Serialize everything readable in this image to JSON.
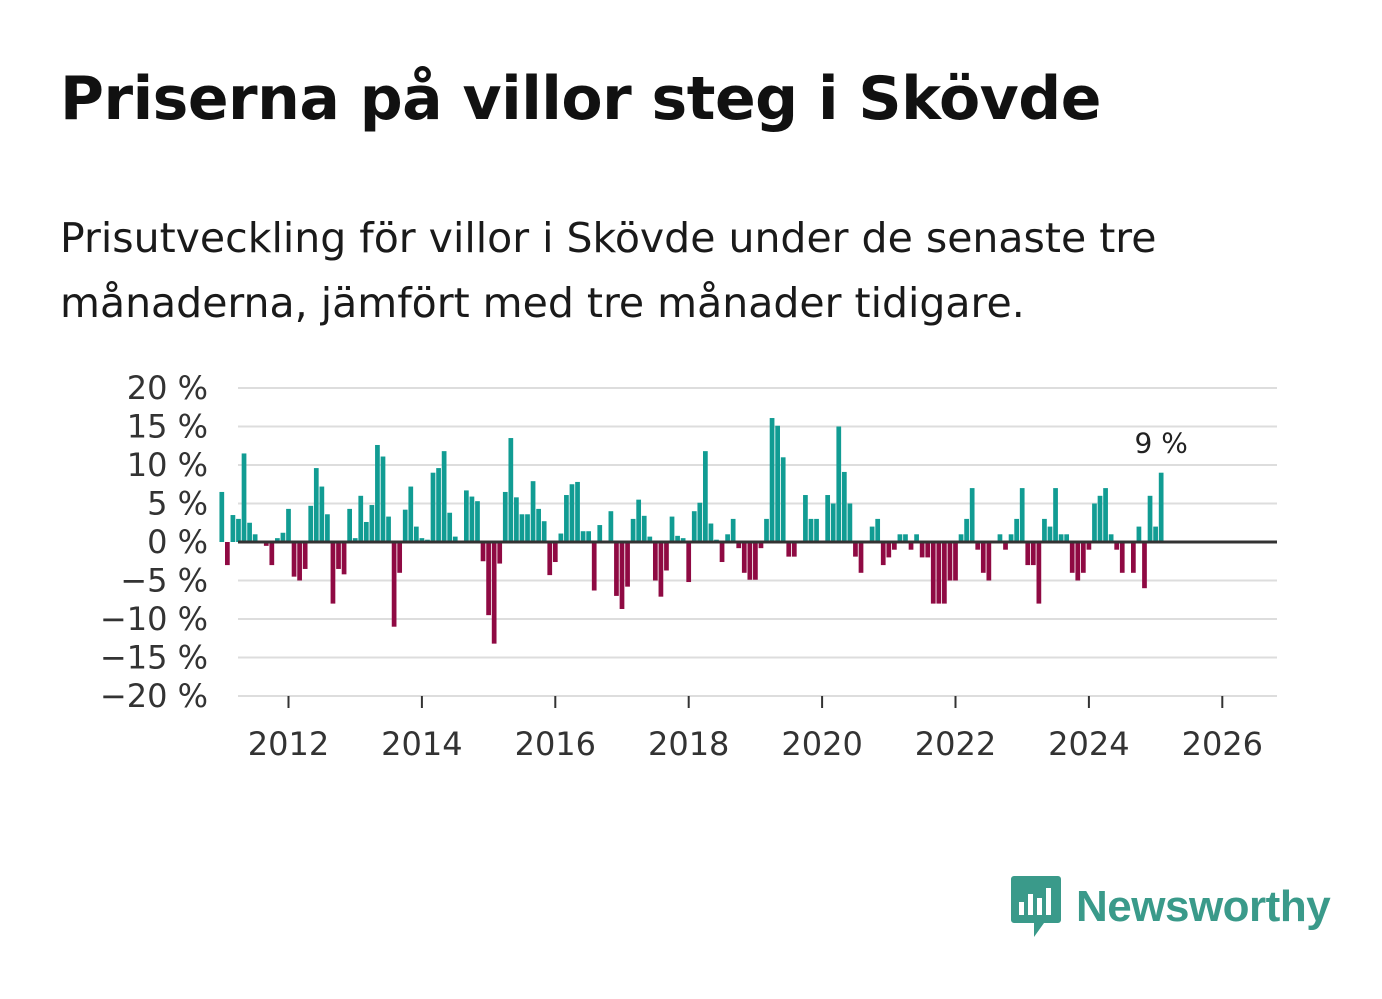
{
  "title": "Priserna på villor steg i Skövde",
  "subtitle": "Prisutveckling för villor i Skövde under de senaste tre månaderna, jämfört med tre månader tidigare.",
  "brand": {
    "name": "Newsworthy",
    "color": "#3a9a8a"
  },
  "colors": {
    "positive": "#119c93",
    "negative": "#8f0a43",
    "grid": "#dddddd",
    "zero_line": "#333333"
  },
  "chart_data": {
    "type": "bar",
    "title": "Priserna på villor steg i Skövde",
    "xlabel": "",
    "ylabel": "",
    "ylim": [
      -20,
      20
    ],
    "y_ticks": [
      {
        "value": 20,
        "label": "20 %"
      },
      {
        "value": 15,
        "label": "15 %"
      },
      {
        "value": 10,
        "label": "10 %"
      },
      {
        "value": 5,
        "label": "5 %"
      },
      {
        "value": 0,
        "label": "0 %"
      },
      {
        "value": -5,
        "label": "−5 %"
      },
      {
        "value": -10,
        "label": "−10 %"
      },
      {
        "value": -15,
        "label": "−15 %"
      },
      {
        "value": -20,
        "label": "−20 %"
      }
    ],
    "x_ticks": [
      "2012",
      "2014",
      "2016",
      "2018",
      "2020",
      "2022",
      "2024",
      "2026"
    ],
    "x_start": "2011-01",
    "last_value_label": "9 %",
    "values": [
      6.5,
      -3,
      3.5,
      3,
      11.5,
      2.5,
      1,
      0,
      -0.5,
      -3,
      0.5,
      1.2,
      4.3,
      -4.5,
      -5,
      -3.5,
      4.7,
      9.6,
      7.2,
      3.6,
      -8,
      -3.5,
      -4.2,
      4.3,
      0.5,
      6,
      2.6,
      4.8,
      12.6,
      11.1,
      3.3,
      -11,
      -4,
      4.2,
      7.2,
      2,
      0.5,
      0.3,
      9,
      9.6,
      11.8,
      3.8,
      0.7,
      0,
      6.7,
      5.9,
      5.3,
      -2.5,
      -9.5,
      -13.2,
      -2.8,
      6.5,
      13.5,
      5.8,
      3.6,
      3.6,
      7.9,
      4.3,
      2.7,
      -4.3,
      -2.6,
      1.1,
      6.1,
      7.5,
      7.8,
      1.4,
      1.4,
      -6.3,
      2.2,
      0,
      4,
      -7,
      -8.7,
      -5.8,
      3,
      5.5,
      3.4,
      0.7,
      -5,
      -7.1,
      -3.7,
      3.3,
      0.8,
      0.5,
      -5.2,
      4,
      5.1,
      11.8,
      2.4,
      0.3,
      -2.6,
      1,
      3,
      -0.8,
      -4,
      -4.9,
      -4.9,
      -0.8,
      3,
      16.1,
      15.1,
      11,
      -1.9,
      -1.9,
      0,
      6.1,
      3,
      3,
      0,
      6.1,
      5,
      15,
      9.1,
      5,
      -1.9,
      -4,
      0,
      2,
      3,
      -3,
      -2,
      -1,
      1,
      1,
      -1,
      1,
      -2,
      -2,
      -8,
      -8,
      -8,
      -5,
      -5,
      1,
      3,
      7,
      -1,
      -4,
      -5,
      0,
      1,
      -1,
      1,
      3,
      7,
      -3,
      -3,
      -8,
      3,
      2,
      7,
      1,
      1,
      -4,
      -5,
      -4,
      -1,
      5,
      6,
      7,
      1,
      -1,
      -4,
      0,
      -4,
      2,
      -6,
      6,
      2,
      9
    ]
  }
}
